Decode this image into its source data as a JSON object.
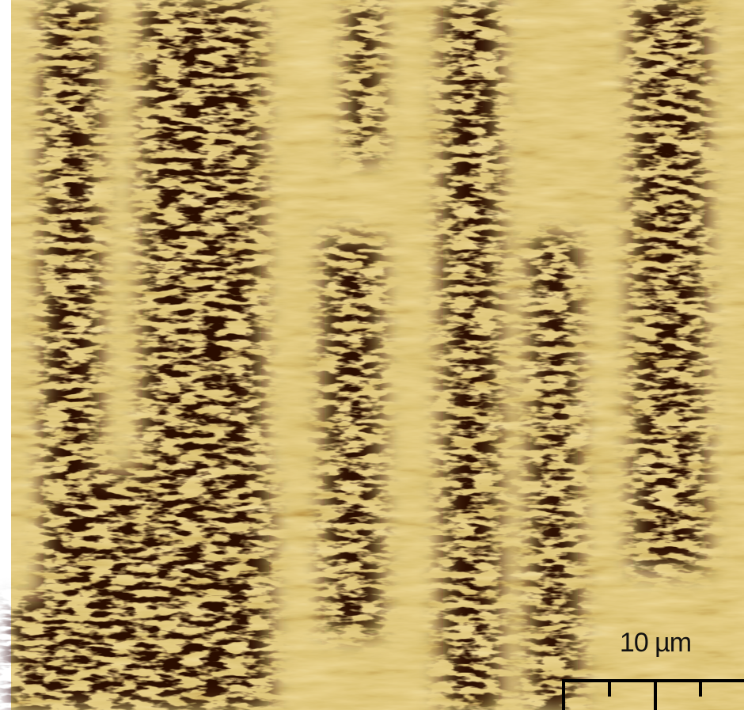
{
  "scale_bar": {
    "label": "10 µm"
  }
}
